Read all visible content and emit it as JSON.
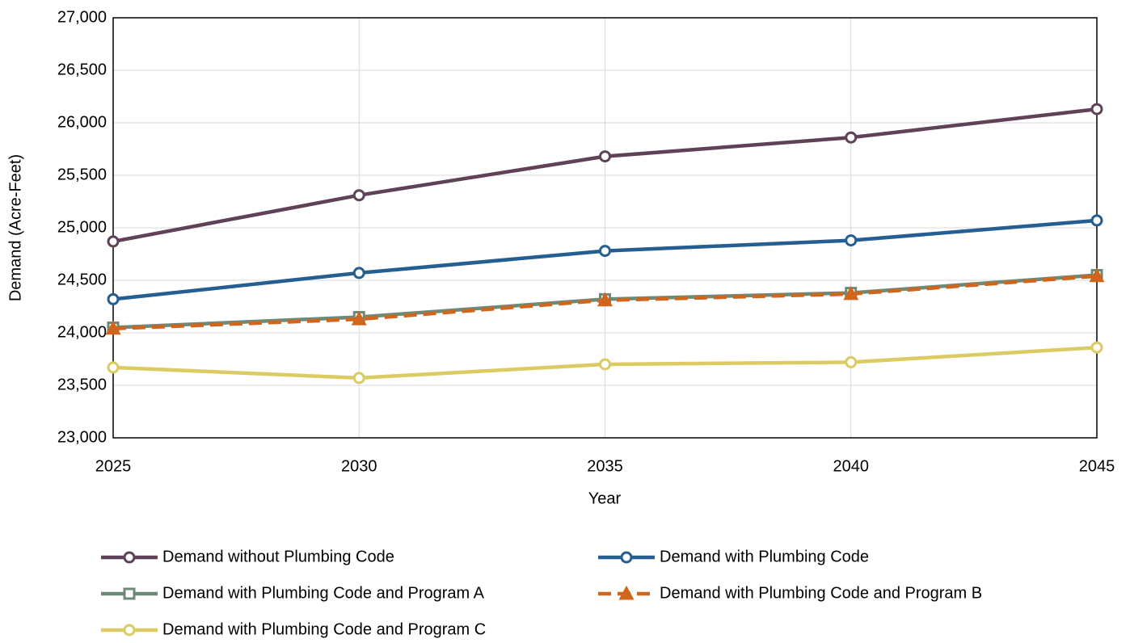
{
  "chart_data": {
    "type": "line",
    "x_label": "Year",
    "y_label": "Demand (Acre-Feet)",
    "x": [
      2025,
      2030,
      2035,
      2040,
      2045
    ],
    "xlim": [
      2025,
      2045
    ],
    "xticks": [
      2025,
      2030,
      2035,
      2040,
      2045
    ],
    "ylim": [
      23000,
      27000
    ],
    "yticks": [
      {
        "value": 23000,
        "label": "23,000"
      },
      {
        "value": 23500,
        "label": "23,500"
      },
      {
        "value": 24000,
        "label": "24,000"
      },
      {
        "value": 24500,
        "label": "24,500"
      },
      {
        "value": 25000,
        "label": "25,000"
      },
      {
        "value": 25500,
        "label": "25,500"
      },
      {
        "value": 26000,
        "label": "26,000"
      },
      {
        "value": 26500,
        "label": "26,500"
      },
      {
        "value": 27000,
        "label": "27,000"
      }
    ],
    "grid": true,
    "legend": "bottom",
    "series": [
      {
        "name": "Demand without Plumbing Code",
        "color": "#5f4258",
        "marker": "circle",
        "values": [
          24870,
          25310,
          25680,
          25860,
          26130
        ]
      },
      {
        "name": "Demand with Plumbing Code",
        "color": "#255e91",
        "marker": "circle",
        "values": [
          24320,
          24570,
          24780,
          24880,
          25070
        ]
      },
      {
        "name": "Demand with Plumbing Code and Program A",
        "color": "#6d8a77",
        "marker": "square",
        "values": [
          24050,
          24150,
          24320,
          24380,
          24550
        ]
      },
      {
        "name": "Demand with Plumbing Code and Program B",
        "color": "#d0651e",
        "marker": "triangle",
        "dashed": true,
        "values": [
          24040,
          24130,
          24310,
          24370,
          24540
        ]
      },
      {
        "name": "Demand with Plumbing Code and Program C",
        "color": "#dccb62",
        "marker": "circle",
        "values": [
          23670,
          23570,
          23700,
          23720,
          23860
        ]
      }
    ]
  }
}
